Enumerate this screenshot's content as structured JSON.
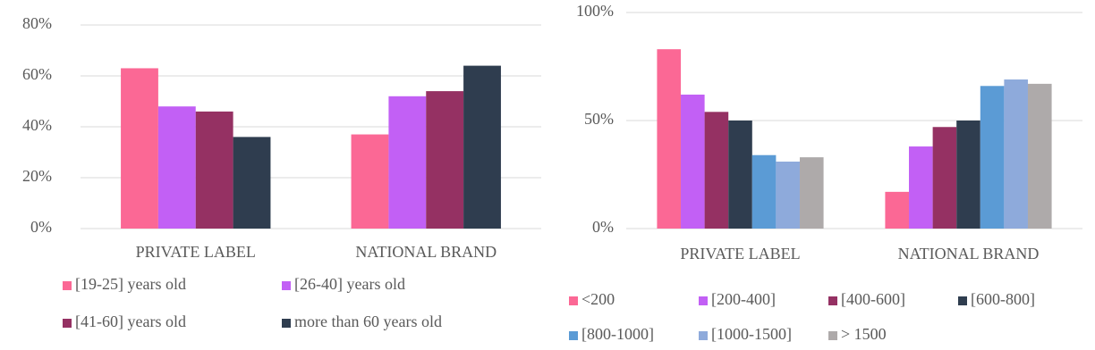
{
  "chart_data": [
    {
      "type": "bar",
      "categories": [
        "PRIVATE LABEL",
        "NATIONAL BRAND"
      ],
      "series": [
        {
          "name": "[19-25] years old",
          "color": "#fb6895",
          "values": [
            63,
            37
          ]
        },
        {
          "name": "[26-40] years old",
          "color": "#c260f5",
          "values": [
            48,
            52
          ]
        },
        {
          "name": "[41-60] years old",
          "color": "#953163",
          "values": [
            46,
            54
          ]
        },
        {
          "name": "more than 60 years old",
          "color": "#2f3d4f",
          "values": [
            36,
            64
          ]
        }
      ],
      "ylim": [
        0,
        80
      ],
      "yticks": [
        {
          "value": 0,
          "label": "0%"
        },
        {
          "value": 20,
          "label": "20%"
        },
        {
          "value": 40,
          "label": "40%"
        },
        {
          "value": 60,
          "label": "60%"
        },
        {
          "value": 80,
          "label": "80%"
        }
      ],
      "grid": true,
      "legend": "bottom"
    },
    {
      "type": "bar",
      "categories": [
        "PRIVATE LABEL",
        "NATIONAL BRAND"
      ],
      "series": [
        {
          "name": "<200",
          "color": "#fb6895",
          "values": [
            83,
            17
          ]
        },
        {
          "name": "[200-400]",
          "color": "#c260f5",
          "values": [
            62,
            38
          ]
        },
        {
          "name": "[400-600]",
          "color": "#953163",
          "values": [
            54,
            47
          ]
        },
        {
          "name": "[600-800]",
          "color": "#2f3d4f",
          "values": [
            50,
            50
          ]
        },
        {
          "name": "[800-1000]",
          "color": "#5b9bd5",
          "values": [
            34,
            66
          ]
        },
        {
          "name": "[1000-1500]",
          "color": "#8eaadb",
          "values": [
            31,
            69
          ]
        },
        {
          "name": "> 1500",
          "color": "#aeaaaa",
          "values": [
            33,
            67
          ]
        }
      ],
      "ylim": [
        0,
        100
      ],
      "yticks": [
        {
          "value": 0,
          "label": "0%"
        },
        {
          "value": 50,
          "label": "50%"
        },
        {
          "value": 100,
          "label": "100%"
        }
      ],
      "grid": true,
      "legend": "bottom"
    }
  ]
}
